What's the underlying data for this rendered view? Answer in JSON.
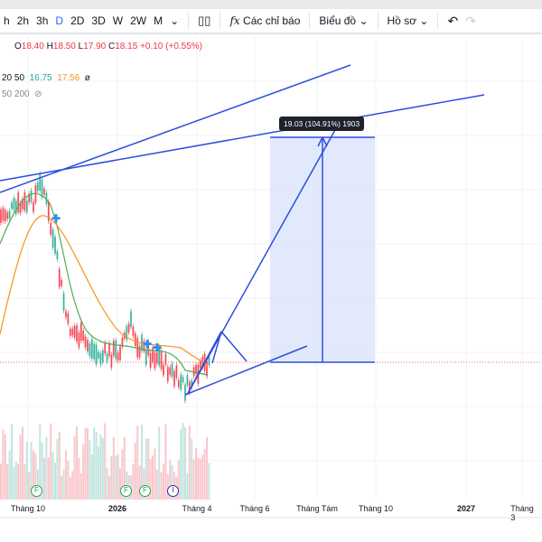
{
  "toolbar": {
    "intervals": [
      "h",
      "2h",
      "3h",
      "D",
      "2D",
      "3D",
      "W",
      "2W",
      "M"
    ],
    "active_interval": "D",
    "indicators_label": "Các chỉ báo",
    "chart_label": "Biểu đồ",
    "profile_label": "Hồ sơ"
  },
  "ohlc": {
    "o_label": "O",
    "o": "18.40",
    "h_label": "H",
    "h": "18.50",
    "l_label": "L",
    "l": "17.90",
    "c_label": "C",
    "c": "18.15",
    "change": "+0.10 (+0.55%)"
  },
  "indicators": [
    {
      "params": "20 50",
      "v1": "16.75",
      "v2": "17.56",
      "icon": "null-icon"
    },
    {
      "params": "50 200",
      "icon": "eye-hidden-icon"
    }
  ],
  "measure_tooltip": "19.03 (104.91%) 1903",
  "markers": [
    "F",
    "F",
    "F",
    "I"
  ],
  "time_axis": [
    "Tháng 10",
    "2026",
    "Tháng 4",
    "Tháng 6",
    "Tháng Tám",
    "Tháng 10",
    "2027",
    "Tháng 3"
  ],
  "colors": {
    "up": "#22ab94",
    "down": "#f23645",
    "drawing": "#2a4fe0",
    "ma_fast": "#4caf50",
    "ma_slow": "#f7931a",
    "position_fill": "#dbe4fb"
  }
}
